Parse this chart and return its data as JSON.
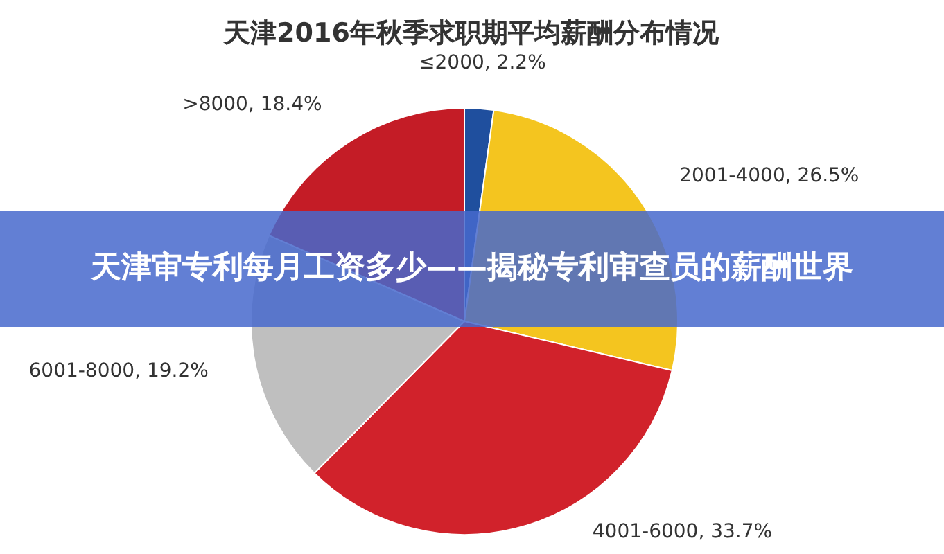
{
  "chart_data": {
    "type": "pie",
    "title": "天津2016年秋季求职期平均薪酬分布情况",
    "categories": [
      "≤2000",
      "2001-4000",
      "4001-6000",
      "6001-8000",
      ">8000"
    ],
    "values": [
      2.2,
      26.5,
      33.7,
      19.2,
      18.4
    ],
    "colors": [
      "#1f4f9e",
      "#f4c51f",
      "#d1222b",
      "#bfbfbf",
      "#c41c26"
    ],
    "value_labels": [
      ", 2.2%",
      ", 26.5%",
      ", 33.7%",
      ", 19.2%",
      ", 18.4%"
    ],
    "annotations": [
      "天津审专利每月工资多少——揭秘专利审查员的薪酬世界"
    ]
  }
}
